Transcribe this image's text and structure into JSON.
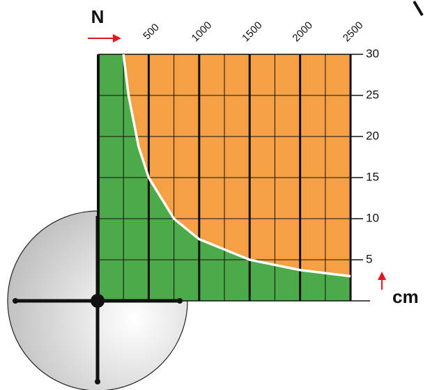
{
  "chart_data": {
    "type": "area",
    "x_label": "N",
    "y_label": "cm",
    "x": [
      250,
      300,
      400,
      500,
      750,
      1000,
      1500,
      2000,
      2500
    ],
    "values": [
      30,
      25,
      18.75,
      15,
      10,
      7.5,
      5,
      3.75,
      3
    ],
    "fill_below": "#4cab48",
    "fill_above": "#f5a045",
    "line_color": "#ffffff",
    "xlim": [
      0,
      2500
    ],
    "ylim": [
      0,
      30
    ],
    "xticks": [
      500,
      1000,
      1500,
      2000,
      2500
    ],
    "yticks": [
      5,
      10,
      15,
      20,
      25,
      30
    ],
    "grid": true
  }
}
